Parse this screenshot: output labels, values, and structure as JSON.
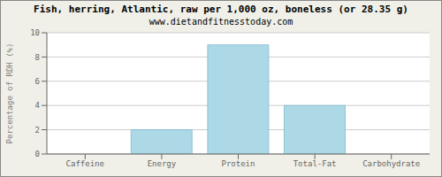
{
  "chart_data": {
    "type": "bar",
    "title": "Fish, herring, Atlantic, raw per 1,000 oz, boneless (or 28.35 g)",
    "subtitle": "www.dietandfitnesstoday.com",
    "categories": [
      "Caffeine",
      "Energy",
      "Protein",
      "Total-Fat",
      "Carbohydrate"
    ],
    "values": [
      0,
      2,
      9,
      4,
      0
    ],
    "color": "#add8e6",
    "ylim": [
      0,
      10
    ],
    "yticks": [
      0,
      2,
      4,
      6,
      8,
      10
    ],
    "ylabel": "Percentage of RDH (%)",
    "grid": true
  }
}
